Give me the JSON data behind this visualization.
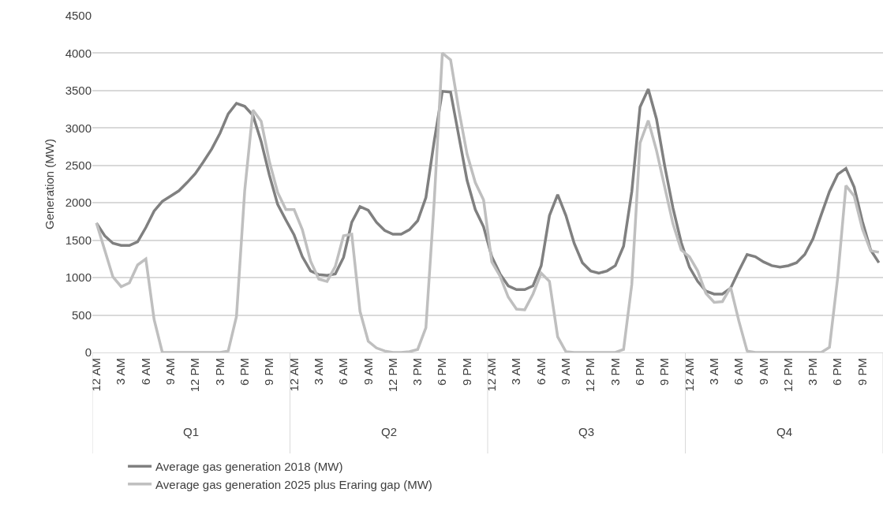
{
  "chart_data": {
    "type": "line",
    "ylabel": "Generation (MW)",
    "categories": [
      "12 AM",
      null,
      null,
      "3 AM",
      null,
      null,
      "6 AM",
      null,
      null,
      "9 AM",
      null,
      null,
      "12 PM",
      null,
      null,
      "3 PM",
      null,
      null,
      "6 PM",
      null,
      null,
      "9 PM",
      null,
      null,
      "12 AM",
      null,
      null,
      "3 AM",
      null,
      null,
      "6 AM",
      null,
      null,
      "9 AM",
      null,
      null,
      "12 PM",
      null,
      null,
      "3 PM",
      null,
      null,
      "6 PM",
      null,
      null,
      "9 PM",
      null,
      null,
      "12 AM",
      null,
      null,
      "3 AM",
      null,
      null,
      "6 AM",
      null,
      null,
      "9 AM",
      null,
      null,
      "12 PM",
      null,
      null,
      "3 PM",
      null,
      null,
      "6 PM",
      null,
      null,
      "9 PM",
      null,
      null,
      "12 AM",
      null,
      null,
      "3 AM",
      null,
      null,
      "6 AM",
      null,
      null,
      "9 AM",
      null,
      null,
      "12 PM",
      null,
      null,
      "3 PM",
      null,
      null,
      "6 PM",
      null,
      null,
      "9 PM",
      null,
      null
    ],
    "series": [
      {
        "name": "Average gas generation 2018 (MW)",
        "color": "#808080",
        "values": [
          1730,
          1560,
          1460,
          1430,
          1430,
          1480,
          1670,
          1890,
          2020,
          2090,
          2160,
          2270,
          2390,
          2550,
          2720,
          2930,
          3190,
          3330,
          3290,
          3170,
          2820,
          2370,
          1980,
          1770,
          1570,
          1280,
          1090,
          1040,
          1030,
          1050,
          1270,
          1740,
          1950,
          1900,
          1740,
          1630,
          1580,
          1580,
          1640,
          1760,
          2070,
          2820,
          3490,
          3480,
          2890,
          2300,
          1910,
          1680,
          1280,
          1050,
          890,
          840,
          840,
          890,
          1160,
          1830,
          2110,
          1830,
          1460,
          1200,
          1090,
          1060,
          1090,
          1160,
          1420,
          2150,
          3280,
          3520,
          3120,
          2490,
          1930,
          1470,
          1140,
          950,
          820,
          780,
          780,
          860,
          1090,
          1310,
          1280,
          1210,
          1160,
          1140,
          1160,
          1200,
          1310,
          1520,
          1840,
          2150,
          2380,
          2460,
          2210,
          1750,
          1370,
          1200
        ]
      },
      {
        "name": "Average gas generation 2025 plus Eraring gap (MW)",
        "color": "#bfbfbf",
        "values": [
          1730,
          1370,
          1010,
          880,
          930,
          1170,
          1250,
          440,
          0,
          0,
          0,
          0,
          0,
          0,
          0,
          0,
          20,
          480,
          2160,
          3240,
          3090,
          2550,
          2140,
          1910,
          1910,
          1640,
          1220,
          980,
          950,
          1150,
          1560,
          1580,
          550,
          150,
          60,
          20,
          0,
          0,
          10,
          40,
          330,
          2000,
          4000,
          3910,
          3240,
          2650,
          2270,
          2040,
          1210,
          1020,
          740,
          580,
          570,
          780,
          1060,
          950,
          210,
          10,
          0,
          0,
          0,
          0,
          0,
          0,
          40,
          910,
          2800,
          3100,
          2700,
          2210,
          1720,
          1370,
          1280,
          1090,
          790,
          670,
          680,
          870,
          420,
          20,
          0,
          0,
          0,
          0,
          0,
          0,
          0,
          0,
          0,
          70,
          1000,
          2230,
          2090,
          1650,
          1360,
          1340
        ]
      }
    ],
    "annotations": [
      "Q1",
      "Q2",
      "Q3",
      "Q4"
    ],
    "ylim": [
      0,
      4500
    ],
    "yticks": [
      0,
      500,
      1000,
      1500,
      2000,
      2500,
      3000,
      3500,
      4000,
      4500
    ],
    "grid": "y",
    "legend": "bottom",
    "marker": "none",
    "line_style": "solid"
  }
}
